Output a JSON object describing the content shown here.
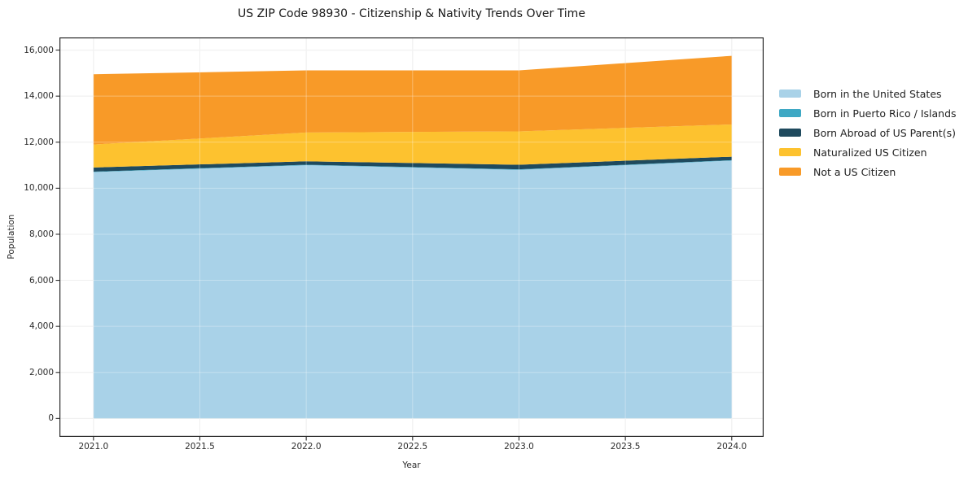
{
  "title": "US ZIP Code 98930 - Citizenship & Nativity Trends Over Time",
  "palette": {
    "grid_color": "#e8e8e8",
    "grid_overlay_color": "rgba(255,255,255,0.32)",
    "spine_color": "#2b2b2b",
    "tick_color": "#2b2b2b",
    "text_color": "#1a1a1a",
    "background": "#ffffff"
  },
  "chart_data": {
    "type": "area",
    "stacked": true,
    "title": "US ZIP Code 98930 - Citizenship & Nativity Trends Over Time",
    "xlabel": "Year",
    "ylabel": "Population",
    "x": [
      2021,
      2022,
      2023,
      2024
    ],
    "series": [
      {
        "name": "Born in the United States",
        "color": "#a9d2e8",
        "values": [
          10700,
          11000,
          10800,
          11200
        ]
      },
      {
        "name": "Born in Puerto Rico / Islands",
        "color": "#3ea8c4",
        "values": [
          20,
          20,
          20,
          20
        ]
      },
      {
        "name": "Born Abroad of US Parent(s)",
        "color": "#1f4a5e",
        "values": [
          180,
          150,
          200,
          150
        ]
      },
      {
        "name": "Naturalized US Citizen",
        "color": "#fdc22f",
        "values": [
          1000,
          1250,
          1450,
          1400
        ]
      },
      {
        "name": "Not a US Citizen",
        "color": "#f89a28",
        "values": [
          3050,
          2700,
          2650,
          2980
        ]
      }
    ],
    "totals": [
      14950,
      15120,
      15120,
      15750
    ],
    "xlim": [
      2020.84,
      2024.15
    ],
    "ylim": [
      -800,
      16550
    ],
    "x_ticks": [
      2021.0,
      2021.5,
      2022.0,
      2022.5,
      2023.0,
      2023.5,
      2024.0
    ],
    "x_tick_labels": [
      "2021.0",
      "2021.5",
      "2022.0",
      "2022.5",
      "2023.0",
      "2023.5",
      "2024.0"
    ],
    "y_ticks": [
      0,
      2000,
      4000,
      6000,
      8000,
      10000,
      12000,
      14000,
      16000
    ],
    "y_tick_labels": [
      "0",
      "2,000",
      "4,000",
      "6,000",
      "8,000",
      "10,000",
      "12,000",
      "14,000",
      "16,000"
    ],
    "grid": true,
    "legend_position": "right"
  }
}
